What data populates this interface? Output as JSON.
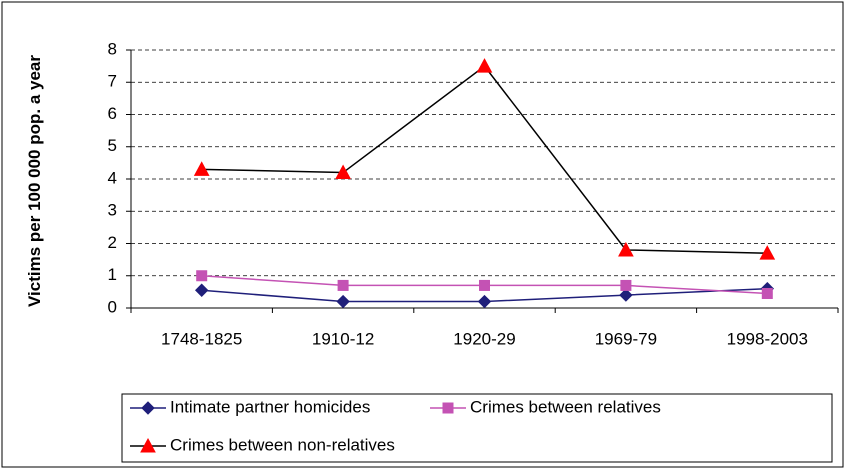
{
  "chart_data": {
    "type": "line",
    "y_axis_label": "Victims per 100 000 pop. a year",
    "categories": [
      "1748-1825",
      "1910-12",
      "1920-29",
      "1969-79",
      "1998-2003"
    ],
    "series": [
      {
        "name": "Intimate partner homicides",
        "color": "#1f1f7a",
        "marker_color": "#1f1f7a",
        "marker": "diamond",
        "values": [
          0.55,
          0.2,
          0.2,
          0.4,
          0.6
        ]
      },
      {
        "name": "Crimes between relatives",
        "color": "#c452b4",
        "marker_color": "#c452b4",
        "marker": "square",
        "values": [
          1.0,
          0.7,
          0.7,
          0.7,
          0.45
        ]
      },
      {
        "name": "Crimes between non-relatives",
        "color": "#000000",
        "marker_color": "#ff0000",
        "marker": "triangle",
        "values": [
          4.3,
          4.2,
          7.5,
          1.8,
          1.7
        ]
      }
    ],
    "ylim": [
      0,
      8
    ],
    "yticks": [
      0,
      1,
      2,
      3,
      4,
      5,
      6,
      7,
      8
    ],
    "grid": true
  }
}
